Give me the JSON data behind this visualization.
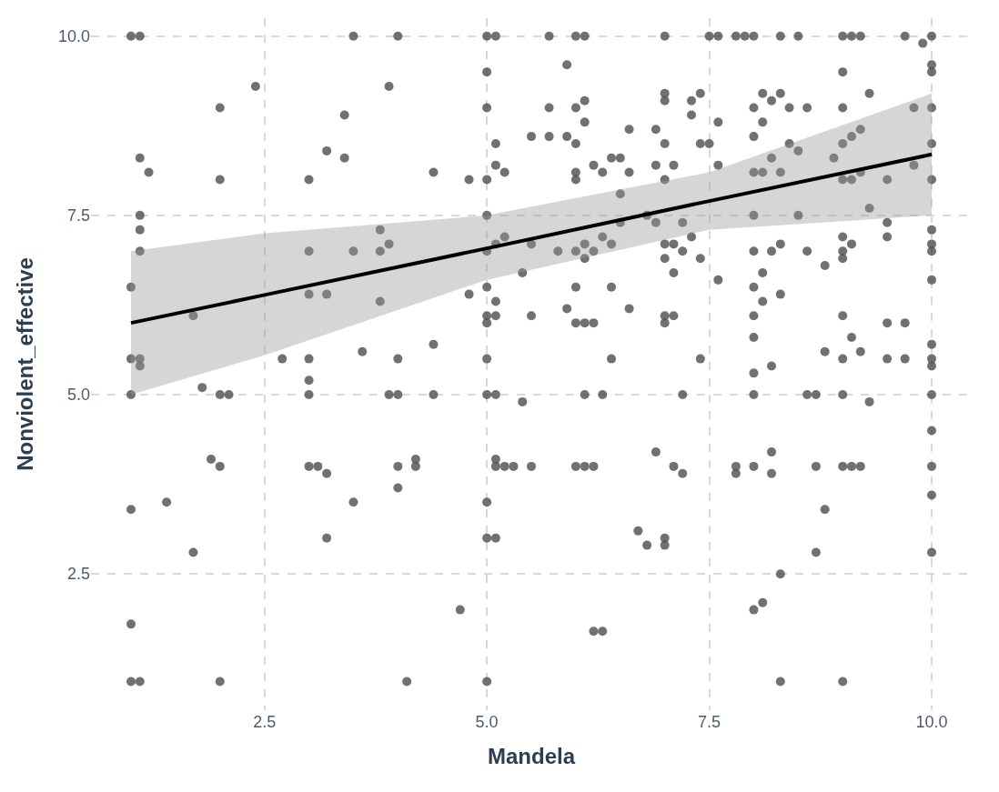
{
  "chart_data": {
    "type": "scatter",
    "xlabel": "Mandela",
    "ylabel": "Nonviolent_effective",
    "xlim": [
      0.55,
      10.45
    ],
    "ylim": [
      0.6,
      10.25
    ],
    "xticks": [
      2.5,
      {
        "value": 5,
        "label": "5.0"
      },
      7.5,
      {
        "value": 10,
        "label": "10.0"
      }
    ],
    "yticks": [
      2.5,
      {
        "value": 5,
        "label": "5.0"
      },
      7.5,
      {
        "value": 10,
        "label": "10.0"
      }
    ],
    "grid": true,
    "series": [
      {
        "marker": "circle",
        "color": "#4d4d4d",
        "x": [
          1,
          1.1,
          1,
          1,
          1,
          1,
          1,
          1,
          1.1,
          1.1,
          1.1,
          1.1,
          1.1,
          1.1,
          1.1,
          1.2,
          1.4,
          1.7,
          1.7,
          1.8,
          2,
          2,
          2,
          1.9,
          2,
          2,
          2.1,
          2.4,
          2.7,
          3,
          3,
          3,
          3,
          3,
          3,
          3,
          3.1,
          3.2,
          3.2,
          3.2,
          3.2,
          3.4,
          3.4,
          3.5,
          3.5,
          3.5,
          3.6,
          3.8,
          3.8,
          3.8,
          3.9,
          3.9,
          3.9,
          4,
          4,
          4,
          4,
          4,
          4.1,
          4.2,
          4.2,
          4.4,
          4.4,
          4.4,
          4.7,
          4.8,
          4.8,
          5,
          5,
          5,
          5,
          5,
          5,
          5,
          5,
          5,
          5,
          5,
          5,
          5,
          5,
          5.1,
          5.1,
          5.1,
          5.1,
          5.1,
          5.1,
          5.1,
          5.1,
          5.1,
          5.1,
          5.2,
          5.2,
          5.2,
          5.3,
          5.4,
          5.4,
          5.5,
          5.5,
          5.5,
          5.5,
          5.7,
          5.7,
          5.7,
          5.8,
          5.9,
          5.9,
          5.9,
          6,
          6,
          6,
          6,
          6,
          6,
          6,
          6,
          6,
          6.1,
          6.1,
          6.1,
          6.1,
          6.1,
          6.1,
          6.1,
          6.1,
          6.2,
          6.2,
          6.2,
          6.2,
          6.2,
          6.3,
          6.3,
          6.3,
          6.3,
          6.4,
          6.4,
          6.4,
          6.4,
          6.5,
          6.5,
          6.5,
          6.6,
          6.6,
          6.6,
          6.7,
          6.8,
          6.8,
          6.9,
          6.9,
          6.9,
          6.9,
          7,
          7,
          7,
          7,
          7,
          7,
          7,
          7,
          7,
          7,
          7,
          7.1,
          7.1,
          7.1,
          7.1,
          7.1,
          7.2,
          7.2,
          7.2,
          7.2,
          7.3,
          7.3,
          7.3,
          7.4,
          7.4,
          7.4,
          7.4,
          7.5,
          7.5,
          7.6,
          7.6,
          7.6,
          7.6,
          7.8,
          7.8,
          7.8,
          7.9,
          8,
          8,
          8,
          8,
          8,
          8,
          8,
          8,
          8,
          8,
          8,
          8,
          8,
          8.1,
          8.1,
          8.1,
          8.1,
          8.1,
          8.1,
          8.2,
          8.2,
          8.2,
          8.2,
          8.2,
          8.2,
          8.3,
          8.3,
          8.3,
          8.3,
          8.3,
          8.3,
          8.3,
          8.4,
          8.4,
          8.5,
          8.5,
          8.5,
          8.6,
          8.6,
          8.6,
          8.7,
          8.7,
          8.7,
          8.8,
          8.8,
          8.8,
          8.9,
          9,
          9,
          9,
          9,
          9,
          9,
          9,
          9,
          9,
          9,
          9,
          9,
          9,
          9.1,
          9.1,
          9.1,
          9.1,
          9.1,
          9.1,
          9.2,
          9.2,
          9.2,
          9.2,
          9.2,
          9.3,
          9.3,
          9.3,
          9.5,
          9.5,
          9.5,
          9.5,
          9.5,
          9.7,
          9.7,
          9.7,
          9.8,
          9.8,
          9.9,
          10,
          10,
          10,
          10,
          10,
          10,
          10,
          10,
          10,
          10,
          10,
          10,
          10,
          10,
          10,
          10,
          10,
          10
        ],
        "values": [
          10,
          10,
          6.5,
          5.5,
          5,
          3.4,
          1.8,
          1,
          1,
          8.3,
          7.5,
          7.3,
          7,
          5.5,
          5.4,
          8.1,
          3.5,
          2.8,
          6.1,
          5.1,
          9,
          8,
          5,
          4.1,
          4,
          1,
          5,
          9.3,
          5.5,
          8,
          7,
          6.4,
          5.5,
          5.2,
          5,
          4,
          4,
          8.4,
          6.4,
          3.9,
          3,
          8.9,
          8.3,
          10,
          7,
          3.5,
          5.6,
          7.3,
          7,
          6.3,
          9.3,
          7.1,
          5,
          10,
          5.5,
          5,
          4,
          3.7,
          1,
          4.1,
          4,
          8.1,
          5.7,
          5,
          2,
          8,
          6.4,
          10,
          9.5,
          9,
          8,
          7.5,
          7,
          6.5,
          6.1,
          6,
          5.5,
          5,
          3.5,
          3,
          1,
          10,
          8.5,
          8.2,
          7.1,
          6.3,
          6.1,
          5,
          4.1,
          4,
          3,
          8.1,
          7.2,
          4,
          4,
          6.7,
          4.9,
          8.6,
          7.1,
          6.1,
          4,
          10,
          9,
          8.6,
          7,
          9.6,
          8.6,
          6.2,
          10,
          9,
          8.5,
          8.1,
          8,
          7,
          6.5,
          6,
          4,
          10,
          9.1,
          8.8,
          7.1,
          6.9,
          6,
          5,
          4,
          8.2,
          7,
          6,
          4,
          1.7,
          8.1,
          7.2,
          5,
          1.7,
          8.3,
          7.1,
          6.5,
          5.5,
          8.3,
          7.8,
          7.4,
          8.7,
          8.1,
          6.2,
          3.1,
          7.5,
          2.9,
          8.7,
          8.2,
          7.4,
          4.2,
          10,
          9.2,
          9.1,
          8.5,
          8,
          7.1,
          6.9,
          6.1,
          6,
          3,
          2.9,
          8.2,
          7.1,
          6.7,
          6.1,
          4,
          7.4,
          7,
          5,
          3.9,
          9.1,
          8.9,
          7.2,
          9.2,
          8.5,
          6.9,
          5.5,
          10,
          8.5,
          10,
          8.8,
          8.2,
          6.6,
          10,
          4,
          3.9,
          10,
          10,
          9,
          8.6,
          8.1,
          7.5,
          7,
          6.5,
          6.1,
          5.8,
          5.3,
          5,
          4,
          2,
          9.2,
          8.8,
          8.1,
          6.7,
          6.3,
          2.1,
          9.1,
          8.3,
          7,
          5.4,
          4.2,
          3.9,
          10,
          9.2,
          8.1,
          7.1,
          6.4,
          2.5,
          1,
          9,
          8.5,
          10,
          8.4,
          7.5,
          9,
          7,
          5,
          5,
          4,
          2.8,
          6.8,
          5.6,
          3.4,
          8.3,
          10,
          9.5,
          9,
          8.5,
          8,
          7.2,
          7,
          6.9,
          6.1,
          5.5,
          5,
          4,
          1,
          10,
          8.6,
          8,
          7.1,
          5.8,
          4,
          10,
          8.7,
          8.1,
          5.6,
          4,
          9.2,
          7.6,
          4.9,
          8,
          7.4,
          7.2,
          6,
          5.5,
          10,
          6,
          5.5,
          9,
          8.2,
          9.9,
          10,
          9.6,
          9.5,
          9,
          8.5,
          8,
          7.3,
          7.1,
          7,
          6.6,
          5.7,
          5.5,
          5.4,
          5,
          4.5,
          4,
          3.6,
          2.8
        ]
      },
      {
        "type": "line",
        "marker": "none",
        "color": "#000000",
        "line_style": "solid",
        "x": [
          1,
          2.5,
          5,
          7.5,
          10
        ],
        "values": [
          6.0,
          6.39,
          7.04,
          7.7,
          8.35
        ],
        "lower": [
          5.0,
          5.55,
          6.6,
          7.3,
          7.5
        ],
        "upper": [
          7.0,
          7.25,
          7.5,
          8.1,
          9.2
        ]
      }
    ]
  }
}
